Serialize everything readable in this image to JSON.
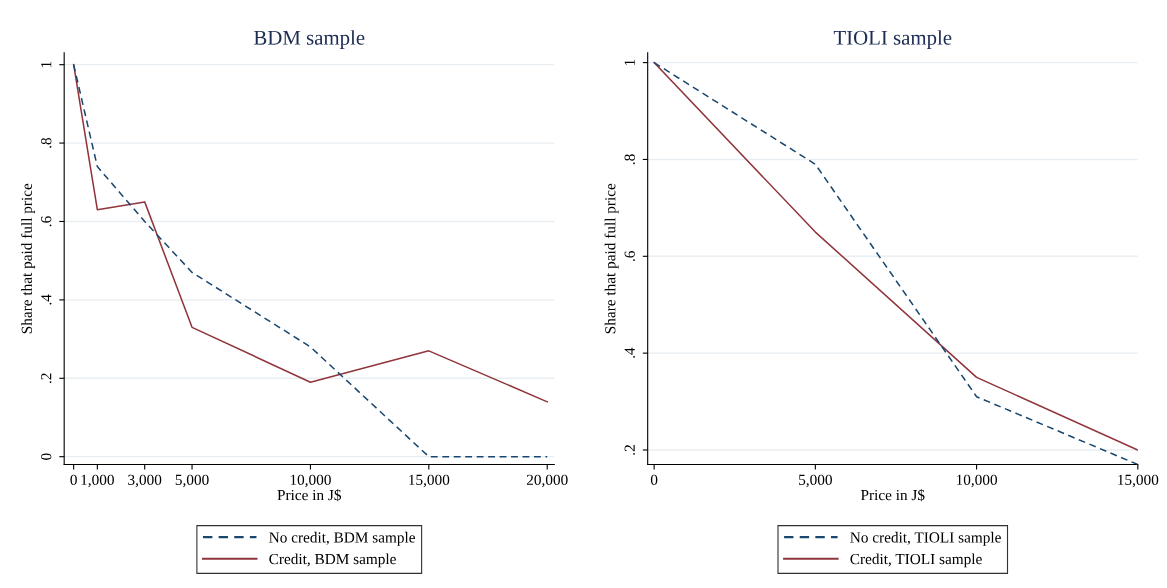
{
  "chart_data": [
    {
      "type": "line",
      "title": "BDM sample",
      "xlabel": "Price in J$",
      "ylabel": "Share that paid full price",
      "x": [
        0,
        1000,
        3000,
        5000,
        10000,
        15000,
        20000
      ],
      "series": [
        {
          "name": "No credit, BDM sample",
          "color": "#1a476f",
          "line_style": "dashed",
          "values": [
            1.0,
            0.74,
            0.6,
            0.47,
            0.28,
            0.0,
            0.0
          ]
        },
        {
          "name": "Credit, BDM sample",
          "color": "#90353b",
          "line_style": "solid",
          "values": [
            1.0,
            0.63,
            0.65,
            0.33,
            0.19,
            0.27,
            0.14
          ]
        }
      ],
      "xlim": [
        -400,
        20300
      ],
      "ylim": [
        -0.02,
        1.03
      ],
      "xticks": [
        0,
        {
          "value": 1000,
          "label": "1,000"
        },
        {
          "value": 3000,
          "label": "3,000"
        },
        {
          "value": 5000,
          "label": "5,000"
        },
        {
          "value": 10000,
          "label": "10,000"
        },
        {
          "value": 15000,
          "label": "15,000"
        },
        {
          "value": 20000,
          "label": "20,000"
        }
      ],
      "yticks": [
        0,
        {
          "value": 0.2,
          "label": ".2"
        },
        {
          "value": 0.4,
          "label": ".4"
        },
        {
          "value": 0.6,
          "label": ".6"
        },
        {
          "value": 0.8,
          "label": ".8"
        },
        1
      ],
      "grid": "y",
      "legend": "bottom",
      "marker": "none"
    },
    {
      "type": "line",
      "title": "TIOLI sample",
      "xlabel": "Price in J$",
      "ylabel": "Share that paid full price",
      "x": [
        0,
        5000,
        10000,
        15000
      ],
      "series": [
        {
          "name": "No credit, TIOLI sample",
          "color": "#1a476f",
          "line_style": "dashed",
          "values": [
            1.0,
            0.79,
            0.31,
            0.17
          ]
        },
        {
          "name": "Credit, TIOLI sample",
          "color": "#90353b",
          "line_style": "solid",
          "values": [
            1.0,
            0.65,
            0.35,
            0.2
          ]
        }
      ],
      "xlim": [
        -200,
        15000
      ],
      "ylim": [
        0.17,
        1.02
      ],
      "xticks": [
        0,
        {
          "value": 5000,
          "label": "5,000"
        },
        {
          "value": 10000,
          "label": "10,000"
        },
        {
          "value": 15000,
          "label": "15,000"
        }
      ],
      "yticks": [
        {
          "value": 0.2,
          "label": ".2"
        },
        {
          "value": 0.4,
          "label": ".4"
        },
        {
          "value": 0.6,
          "label": ".6"
        },
        {
          "value": 0.8,
          "label": ".8"
        },
        1
      ],
      "grid": "y",
      "legend": "bottom",
      "marker": "none"
    }
  ]
}
